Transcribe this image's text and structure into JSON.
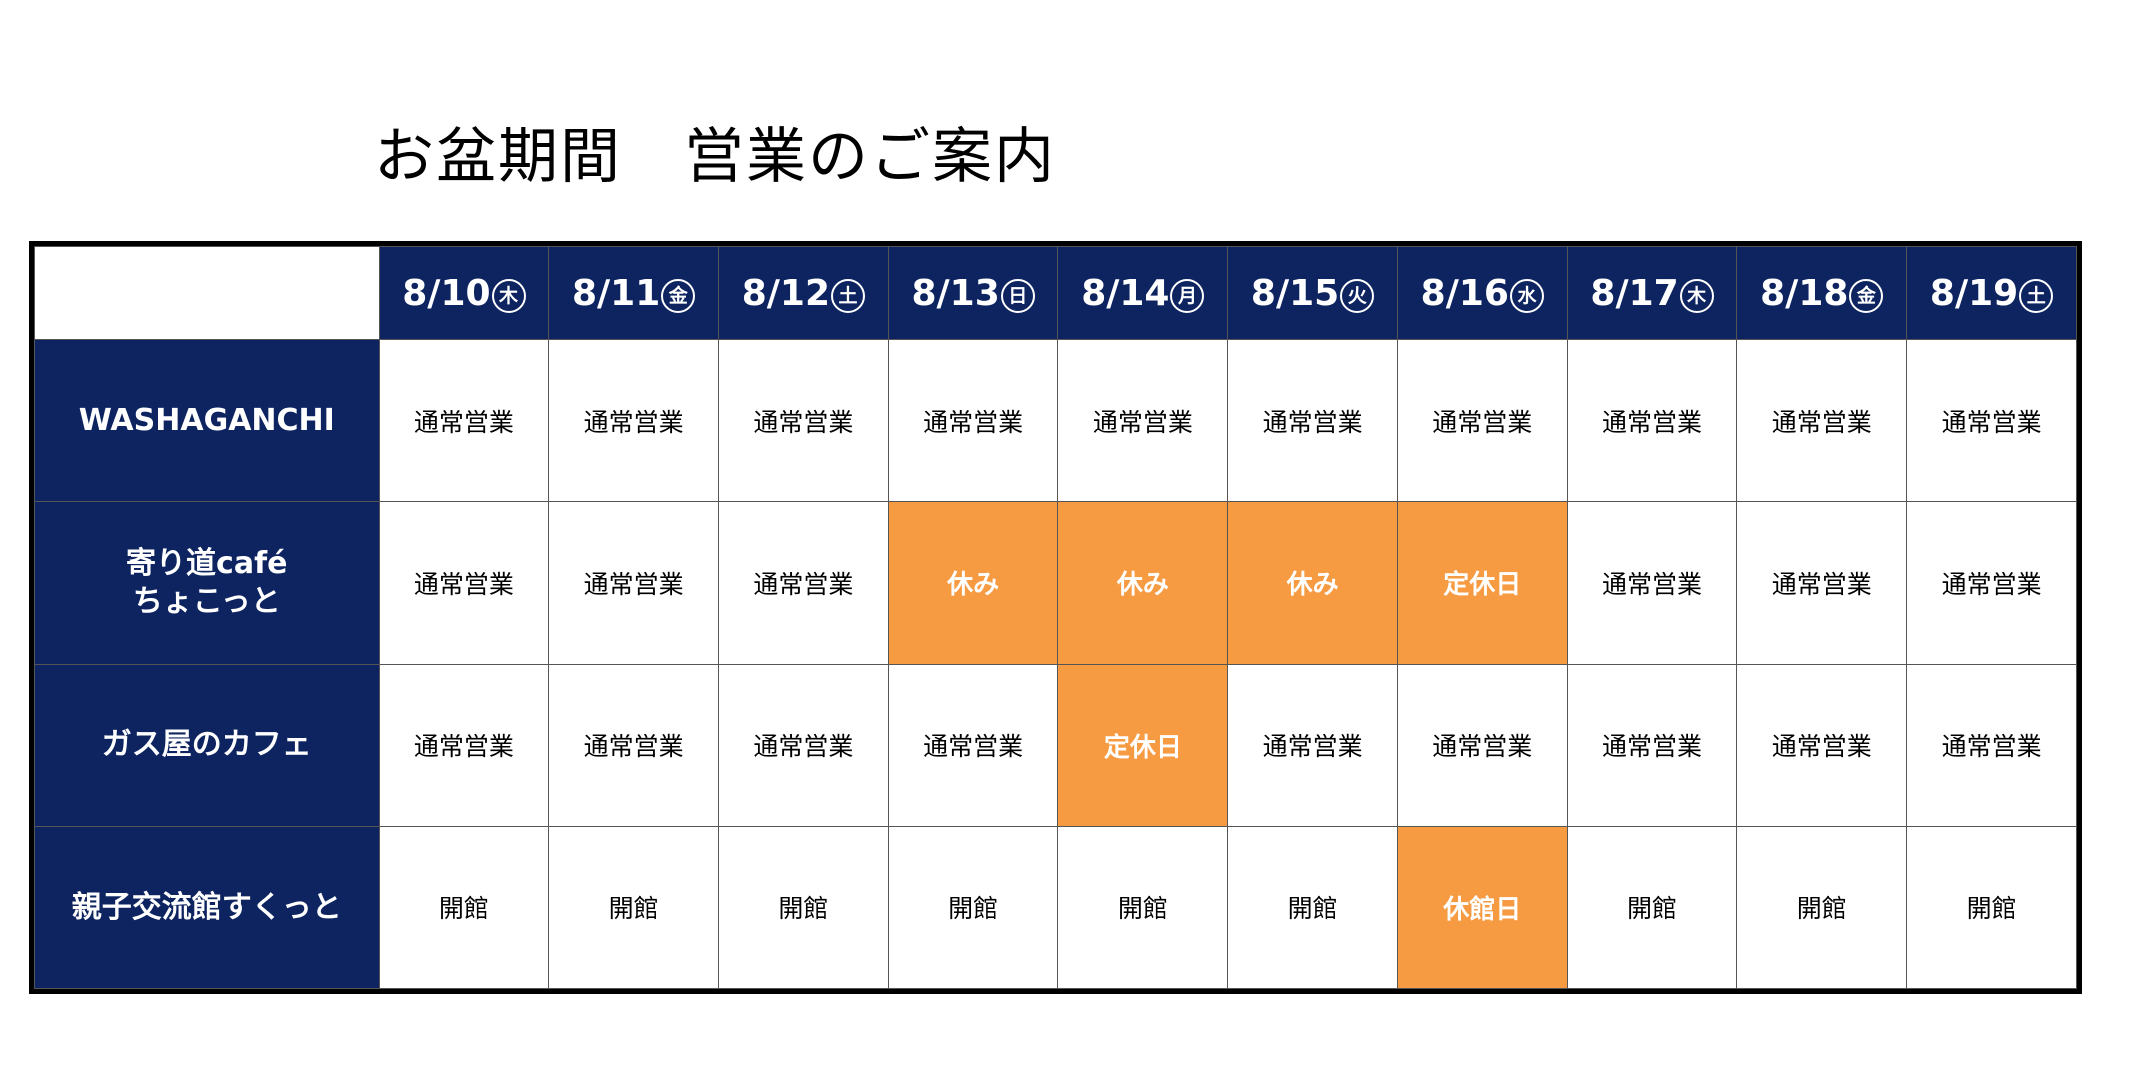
{
  "title": "お盆期間　営業のご案内",
  "colors": {
    "header_navy": "#0d2460",
    "closed_orange": "#f79b43",
    "border": "#000000"
  },
  "dates": [
    {
      "date": "8/10",
      "weekday": "木"
    },
    {
      "date": "8/11",
      "weekday": "金"
    },
    {
      "date": "8/12",
      "weekday": "土"
    },
    {
      "date": "8/13",
      "weekday": "日"
    },
    {
      "date": "8/14",
      "weekday": "月"
    },
    {
      "date": "8/15",
      "weekday": "火"
    },
    {
      "date": "8/16",
      "weekday": "水"
    },
    {
      "date": "8/17",
      "weekday": "木"
    },
    {
      "date": "8/18",
      "weekday": "金"
    },
    {
      "date": "8/19",
      "weekday": "土"
    }
  ],
  "venues": [
    {
      "name_lines": [
        "WASHAGANCHI"
      ],
      "cells": [
        {
          "text": "通常営業",
          "closed": false
        },
        {
          "text": "通常営業",
          "closed": false
        },
        {
          "text": "通常営業",
          "closed": false
        },
        {
          "text": "通常営業",
          "closed": false
        },
        {
          "text": "通常営業",
          "closed": false
        },
        {
          "text": "通常営業",
          "closed": false
        },
        {
          "text": "通常営業",
          "closed": false
        },
        {
          "text": "通常営業",
          "closed": false
        },
        {
          "text": "通常営業",
          "closed": false
        },
        {
          "text": "通常営業",
          "closed": false
        }
      ]
    },
    {
      "name_lines": [
        "寄り道café",
        "ちょこっと"
      ],
      "cells": [
        {
          "text": "通常営業",
          "closed": false
        },
        {
          "text": "通常営業",
          "closed": false
        },
        {
          "text": "通常営業",
          "closed": false
        },
        {
          "text": "休み",
          "closed": true
        },
        {
          "text": "休み",
          "closed": true
        },
        {
          "text": "休み",
          "closed": true
        },
        {
          "text": "定休日",
          "closed": true
        },
        {
          "text": "通常営業",
          "closed": false
        },
        {
          "text": "通常営業",
          "closed": false
        },
        {
          "text": "通常営業",
          "closed": false
        }
      ]
    },
    {
      "name_lines": [
        "ガス屋のカフェ"
      ],
      "cells": [
        {
          "text": "通常営業",
          "closed": false
        },
        {
          "text": "通常営業",
          "closed": false
        },
        {
          "text": "通常営業",
          "closed": false
        },
        {
          "text": "通常営業",
          "closed": false
        },
        {
          "text": "定休日",
          "closed": true
        },
        {
          "text": "通常営業",
          "closed": false
        },
        {
          "text": "通常営業",
          "closed": false
        },
        {
          "text": "通常営業",
          "closed": false
        },
        {
          "text": "通常営業",
          "closed": false
        },
        {
          "text": "通常営業",
          "closed": false
        }
      ]
    },
    {
      "name_lines": [
        "親子交流館すくっと"
      ],
      "cells": [
        {
          "text": "開館",
          "closed": false
        },
        {
          "text": "開館",
          "closed": false
        },
        {
          "text": "開館",
          "closed": false
        },
        {
          "text": "開館",
          "closed": false
        },
        {
          "text": "開館",
          "closed": false
        },
        {
          "text": "開館",
          "closed": false
        },
        {
          "text": "休館日",
          "closed": true
        },
        {
          "text": "開館",
          "closed": false
        },
        {
          "text": "開館",
          "closed": false
        },
        {
          "text": "開館",
          "closed": false
        }
      ]
    }
  ]
}
